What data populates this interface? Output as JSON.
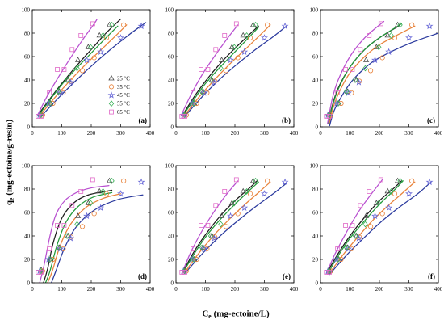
{
  "chart_data": {
    "type": "scatter",
    "ylabel": {
      "symbol": "q",
      "subscript": "e",
      "units": "(mg-ectoine/g-resin)"
    },
    "xlabel": {
      "symbol": "C",
      "subscript": "e",
      "units": "(mg-ectoine/L)"
    },
    "xlim": [
      0,
      400
    ],
    "ylim": [
      0,
      100
    ],
    "xticks": [
      0,
      100,
      200,
      300,
      400
    ],
    "yticks": [
      0,
      20,
      40,
      60,
      80,
      100
    ],
    "grid": false,
    "legend_placement": "bottom-right",
    "series": [
      {
        "name": "25 °C",
        "marker": "triangle",
        "color": "#4a4a4a",
        "line_color": "#1a1a1a",
        "x": [
          30,
          62,
          92,
          122,
          155,
          190,
          228,
          262
        ],
        "y": [
          11,
          20,
          30,
          40,
          57,
          68,
          78,
          87
        ]
      },
      {
        "name": "35 °C",
        "marker": "circle",
        "color": "#e8823a",
        "line_color": "#e8823a",
        "x": [
          35,
          70,
          105,
          132,
          170,
          210,
          252,
          310
        ],
        "y": [
          10,
          20,
          29,
          39,
          48,
          59,
          76,
          87
        ]
      },
      {
        "name": "45 °C",
        "marker": "star",
        "color": "#6a6ad8",
        "line_color": "#2b3a9e",
        "x": [
          25,
          55,
          95,
          130,
          185,
          232,
          300,
          370
        ],
        "y": [
          10,
          20,
          29,
          38,
          57,
          64,
          76,
          86
        ]
      },
      {
        "name": "55 °C",
        "marker": "diamond",
        "color": "#3cb35a",
        "line_color": "#22993a",
        "x": [
          28,
          60,
          88,
          118,
          152,
          198,
          240,
          270
        ],
        "y": [
          10,
          20,
          30,
          40,
          50,
          68,
          78,
          87
        ]
      },
      {
        "name": "65 °C",
        "marker": "square",
        "color": "#e06ac8",
        "line_color": "#b84fd0",
        "x": [
          20,
          30,
          58,
          85,
          108,
          135,
          165,
          205
        ],
        "y": [
          9,
          9,
          29,
          49,
          49,
          66,
          78,
          88
        ]
      }
    ],
    "panels": [
      {
        "label": "(a)",
        "fits": [
          [
            [
              25,
              12
            ],
            [
              60,
              24
            ],
            [
              100,
              37
            ],
            [
              150,
              52
            ],
            [
              200,
              66
            ],
            [
              250,
              80
            ],
            [
              300,
              92
            ]
          ],
          [
            [
              30,
              11
            ],
            [
              80,
              26
            ],
            [
              130,
              40
            ],
            [
              180,
              53
            ],
            [
              230,
              65
            ],
            [
              280,
              77
            ],
            [
              320,
              87
            ]
          ],
          [
            [
              30,
              9
            ],
            [
              90,
              25
            ],
            [
              150,
              40
            ],
            [
              210,
              54
            ],
            [
              270,
              67
            ],
            [
              330,
              79
            ],
            [
              385,
              89
            ]
          ],
          [
            [
              25,
              11
            ],
            [
              60,
              23
            ],
            [
              100,
              36
            ],
            [
              150,
              50
            ],
            [
              200,
              63
            ],
            [
              250,
              76
            ],
            [
              290,
              86
            ]
          ],
          [
            [
              18,
              10
            ],
            [
              50,
              26
            ],
            [
              90,
              43
            ],
            [
              130,
              59
            ],
            [
              170,
              74
            ],
            [
              210,
              88
            ],
            [
              220,
              92
            ]
          ]
        ]
      },
      {
        "label": "(b)",
        "fits": [
          [
            [
              25,
              11
            ],
            [
              60,
              25
            ],
            [
              100,
              39
            ],
            [
              150,
              54
            ],
            [
              200,
              67
            ],
            [
              250,
              79
            ],
            [
              280,
              86
            ]
          ],
          [
            [
              30,
              10
            ],
            [
              80,
              26
            ],
            [
              130,
              40
            ],
            [
              180,
              53
            ],
            [
              230,
              65
            ],
            [
              280,
              77
            ],
            [
              320,
              87
            ]
          ],
          [
            [
              30,
              9
            ],
            [
              90,
              26
            ],
            [
              150,
              41
            ],
            [
              210,
              54
            ],
            [
              270,
              66
            ],
            [
              330,
              77
            ],
            [
              375,
              86
            ]
          ],
          [
            [
              25,
              10
            ],
            [
              60,
              23
            ],
            [
              100,
              37
            ],
            [
              150,
              51
            ],
            [
              200,
              64
            ],
            [
              250,
              77
            ],
            [
              280,
              85
            ]
          ],
          [
            [
              18,
              10
            ],
            [
              50,
              27
            ],
            [
              90,
              45
            ],
            [
              130,
              60
            ],
            [
              170,
              74
            ],
            [
              210,
              87
            ]
          ]
        ]
      },
      {
        "label": "(c)",
        "fits": [
          [
            [
              27,
              4
            ],
            [
              40,
              18
            ],
            [
              60,
              33
            ],
            [
              100,
              51
            ],
            [
              150,
              66
            ],
            [
              200,
              76
            ],
            [
              265,
              86
            ]
          ],
          [
            [
              29,
              2
            ],
            [
              45,
              18
            ],
            [
              70,
              33
            ],
            [
              100,
              46
            ],
            [
              150,
              60
            ],
            [
              200,
              70
            ],
            [
              250,
              77
            ],
            [
              320,
              86
            ]
          ],
          [
            [
              31,
              1
            ],
            [
              50,
              16
            ],
            [
              100,
              37
            ],
            [
              150,
              50
            ],
            [
              200,
              59
            ],
            [
              300,
              71
            ],
            [
              400,
              80
            ]
          ],
          [
            [
              27,
              3
            ],
            [
              40,
              17
            ],
            [
              60,
              32
            ],
            [
              100,
              51
            ],
            [
              150,
              66
            ],
            [
              200,
              76
            ],
            [
              275,
              88
            ]
          ],
          [
            [
              24,
              3
            ],
            [
              40,
              24
            ],
            [
              60,
              40
            ],
            [
              100,
              60
            ],
            [
              150,
              76
            ],
            [
              215,
              90
            ]
          ]
        ]
      },
      {
        "label": "(d)",
        "fits": [
          [
            [
              38,
              0
            ],
            [
              52,
              12
            ],
            [
              72,
              35
            ],
            [
              100,
              55
            ],
            [
              140,
              68
            ],
            [
              190,
              75
            ],
            [
              270,
              79
            ]
          ],
          [
            [
              52,
              0
            ],
            [
              68,
              10
            ],
            [
              95,
              32
            ],
            [
              130,
              50
            ],
            [
              180,
              64
            ],
            [
              240,
              72
            ],
            [
              300,
              76
            ]
          ],
          [
            [
              65,
              0
            ],
            [
              80,
              10
            ],
            [
              110,
              30
            ],
            [
              150,
              48
            ],
            [
              210,
              62
            ],
            [
              290,
              71
            ],
            [
              375,
              75
            ]
          ],
          [
            [
              45,
              0
            ],
            [
              60,
              10
            ],
            [
              85,
              33
            ],
            [
              115,
              52
            ],
            [
              155,
              65
            ],
            [
              205,
              73
            ],
            [
              270,
              77
            ]
          ],
          [
            [
              25,
              0
            ],
            [
              40,
              15
            ],
            [
              60,
              40
            ],
            [
              80,
              58
            ],
            [
              110,
              70
            ],
            [
              150,
              77
            ],
            [
              200,
              81
            ],
            [
              260,
              83
            ]
          ]
        ]
      },
      {
        "label": "(e)",
        "fits": [
          [
            [
              25,
              10
            ],
            [
              60,
              26
            ],
            [
              100,
              41
            ],
            [
              150,
              57
            ],
            [
              200,
              70
            ],
            [
              250,
              81
            ],
            [
              275,
              87
            ]
          ],
          [
            [
              30,
              9
            ],
            [
              80,
              26
            ],
            [
              130,
              41
            ],
            [
              180,
              54
            ],
            [
              230,
              66
            ],
            [
              280,
              77
            ],
            [
              320,
              86
            ]
          ],
          [
            [
              30,
              8
            ],
            [
              90,
              25
            ],
            [
              150,
              40
            ],
            [
              210,
              53
            ],
            [
              270,
              65
            ],
            [
              330,
              76
            ],
            [
              375,
              85
            ]
          ],
          [
            [
              25,
              9
            ],
            [
              60,
              24
            ],
            [
              100,
              39
            ],
            [
              150,
              54
            ],
            [
              200,
              67
            ],
            [
              250,
              79
            ],
            [
              280,
              86
            ]
          ],
          [
            [
              20,
              8
            ],
            [
              50,
              26
            ],
            [
              90,
              45
            ],
            [
              130,
              61
            ],
            [
              170,
              75
            ],
            [
              210,
              87
            ]
          ]
        ]
      },
      {
        "label": "(f)",
        "fits": [
          [
            [
              25,
              10
            ],
            [
              60,
              25
            ],
            [
              100,
              40
            ],
            [
              150,
              56
            ],
            [
              200,
              70
            ],
            [
              250,
              81
            ],
            [
              275,
              87
            ]
          ],
          [
            [
              30,
              8
            ],
            [
              80,
              25
            ],
            [
              130,
              40
            ],
            [
              180,
              54
            ],
            [
              230,
              66
            ],
            [
              280,
              77
            ],
            [
              320,
              86
            ]
          ],
          [
            [
              30,
              7
            ],
            [
              90,
              24
            ],
            [
              150,
              39
            ],
            [
              210,
              53
            ],
            [
              270,
              65
            ],
            [
              330,
              76
            ],
            [
              375,
              86
            ]
          ],
          [
            [
              25,
              8
            ],
            [
              60,
              23
            ],
            [
              100,
              38
            ],
            [
              150,
              53
            ],
            [
              200,
              67
            ],
            [
              250,
              79
            ],
            [
              280,
              87
            ]
          ],
          [
            [
              20,
              8
            ],
            [
              50,
              25
            ],
            [
              90,
              44
            ],
            [
              130,
              61
            ],
            [
              170,
              75
            ],
            [
              210,
              88
            ]
          ]
        ]
      }
    ]
  }
}
